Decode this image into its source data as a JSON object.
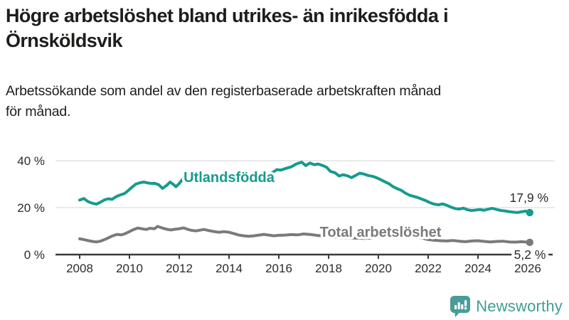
{
  "header": {
    "title_lines": [
      "Högre arbetslöshet bland utrikes- än inrikesfödda i",
      "Örnsköldsvik"
    ],
    "subtitle_lines": [
      "Arbetssökande som andel av den registerbaserade arbetskraften månad",
      "för månad."
    ]
  },
  "chart_data": {
    "type": "line",
    "title": "Högre arbetslöshet bland utrikes- än inrikesfödda i Örnsköldsvik",
    "subtitle": "Arbetssökande som andel av den registerbaserade arbetskraften månad för månad.",
    "grid": "horizontal",
    "legend_position": "inline-labels",
    "xlim": [
      2007.8,
      2026.6
    ],
    "ylim": [
      0,
      42
    ],
    "x_tick_years": [
      2008,
      2010,
      2012,
      2014,
      2016,
      2018,
      2020,
      2022,
      2024,
      2026
    ],
    "y_ticks": [
      {
        "value": 0,
        "label": "0 %"
      },
      {
        "value": 20,
        "label": "20 %"
      },
      {
        "value": 40,
        "label": "40 %"
      }
    ],
    "series": [
      {
        "name": "Utlandsfödda",
        "color": "#169b8d",
        "end_label": "17,9 %",
        "end_value": 17.9,
        "points": [
          [
            2008.0,
            23.2
          ],
          [
            2008.17,
            23.9
          ],
          [
            2008.33,
            22.6
          ],
          [
            2008.5,
            21.9
          ],
          [
            2008.67,
            21.5
          ],
          [
            2008.83,
            22.3
          ],
          [
            2009.0,
            23.3
          ],
          [
            2009.15,
            23.8
          ],
          [
            2009.3,
            23.5
          ],
          [
            2009.45,
            24.6
          ],
          [
            2009.6,
            25.3
          ],
          [
            2009.8,
            26.0
          ],
          [
            2009.92,
            27.0
          ],
          [
            2010.08,
            28.5
          ],
          [
            2010.25,
            30.0
          ],
          [
            2010.42,
            30.6
          ],
          [
            2010.58,
            30.9
          ],
          [
            2010.75,
            30.5
          ],
          [
            2010.92,
            30.3
          ],
          [
            2011.0,
            30.4
          ],
          [
            2011.17,
            29.8
          ],
          [
            2011.33,
            28.2
          ],
          [
            2011.5,
            29.5
          ],
          [
            2011.63,
            30.9
          ],
          [
            2011.75,
            30.0
          ],
          [
            2011.87,
            28.9
          ],
          [
            2012.0,
            30.3
          ],
          [
            2012.17,
            32.6
          ],
          [
            2012.33,
            33.0
          ],
          [
            2012.5,
            32.0
          ],
          [
            2012.75,
            31.4
          ],
          [
            2013.0,
            32.2
          ],
          [
            2013.25,
            31.4
          ],
          [
            2013.5,
            30.8
          ],
          [
            2013.75,
            31.6
          ],
          [
            2014.0,
            31.2
          ],
          [
            2014.25,
            30.7
          ],
          [
            2014.5,
            31.4
          ],
          [
            2014.75,
            31.9
          ],
          [
            2015.0,
            32.4
          ],
          [
            2015.25,
            33.0
          ],
          [
            2015.5,
            33.8
          ],
          [
            2015.75,
            35.0
          ],
          [
            2015.92,
            36.2
          ],
          [
            2016.08,
            36.0
          ],
          [
            2016.25,
            36.6
          ],
          [
            2016.5,
            37.4
          ],
          [
            2016.7,
            38.6
          ],
          [
            2016.92,
            39.4
          ],
          [
            2017.08,
            37.9
          ],
          [
            2017.25,
            39.0
          ],
          [
            2017.42,
            38.3
          ],
          [
            2017.58,
            38.6
          ],
          [
            2017.75,
            38.0
          ],
          [
            2017.92,
            37.2
          ],
          [
            2018.08,
            35.4
          ],
          [
            2018.25,
            34.9
          ],
          [
            2018.42,
            33.5
          ],
          [
            2018.58,
            34.0
          ],
          [
            2018.75,
            33.6
          ],
          [
            2018.92,
            32.8
          ],
          [
            2019.08,
            33.7
          ],
          [
            2019.25,
            34.7
          ],
          [
            2019.42,
            34.3
          ],
          [
            2019.58,
            33.7
          ],
          [
            2019.75,
            33.4
          ],
          [
            2019.92,
            32.8
          ],
          [
            2020.08,
            32.0
          ],
          [
            2020.25,
            31.1
          ],
          [
            2020.42,
            30.2
          ],
          [
            2020.58,
            29.0
          ],
          [
            2020.75,
            28.1
          ],
          [
            2020.92,
            27.4
          ],
          [
            2021.08,
            26.2
          ],
          [
            2021.25,
            25.3
          ],
          [
            2021.42,
            24.8
          ],
          [
            2021.58,
            24.3
          ],
          [
            2021.75,
            23.6
          ],
          [
            2021.92,
            22.9
          ],
          [
            2022.08,
            22.1
          ],
          [
            2022.25,
            21.5
          ],
          [
            2022.42,
            21.2
          ],
          [
            2022.58,
            21.6
          ],
          [
            2022.75,
            21.0
          ],
          [
            2022.92,
            20.2
          ],
          [
            2023.08,
            19.6
          ],
          [
            2023.25,
            19.4
          ],
          [
            2023.42,
            19.8
          ],
          [
            2023.58,
            19.1
          ],
          [
            2023.75,
            18.8
          ],
          [
            2023.92,
            19.0
          ],
          [
            2024.08,
            19.2
          ],
          [
            2024.25,
            18.9
          ],
          [
            2024.42,
            19.4
          ],
          [
            2024.58,
            19.7
          ],
          [
            2024.75,
            19.2
          ],
          [
            2024.92,
            18.8
          ],
          [
            2025.08,
            18.6
          ],
          [
            2025.25,
            18.3
          ],
          [
            2025.42,
            18.1
          ],
          [
            2025.58,
            17.9
          ],
          [
            2025.75,
            18.2
          ],
          [
            2025.92,
            18.5
          ],
          [
            2026.08,
            17.9
          ]
        ]
      },
      {
        "name": "Total arbetslöshet",
        "color": "#7a7a7a",
        "end_label": "5,2 %",
        "end_value": 5.2,
        "points": [
          [
            2008.0,
            6.7
          ],
          [
            2008.17,
            6.4
          ],
          [
            2008.33,
            6.0
          ],
          [
            2008.5,
            5.6
          ],
          [
            2008.67,
            5.4
          ],
          [
            2008.83,
            5.7
          ],
          [
            2009.0,
            6.4
          ],
          [
            2009.17,
            7.2
          ],
          [
            2009.33,
            8.0
          ],
          [
            2009.5,
            8.6
          ],
          [
            2009.67,
            8.4
          ],
          [
            2009.83,
            8.9
          ],
          [
            2010.0,
            9.8
          ],
          [
            2010.17,
            10.7
          ],
          [
            2010.33,
            11.3
          ],
          [
            2010.5,
            11.0
          ],
          [
            2010.67,
            10.7
          ],
          [
            2010.83,
            11.2
          ],
          [
            2011.0,
            11.0
          ],
          [
            2011.13,
            12.0
          ],
          [
            2011.3,
            11.4
          ],
          [
            2011.5,
            10.8
          ],
          [
            2011.67,
            10.5
          ],
          [
            2011.83,
            10.8
          ],
          [
            2012.0,
            11.0
          ],
          [
            2012.17,
            11.4
          ],
          [
            2012.33,
            10.8
          ],
          [
            2012.5,
            10.3
          ],
          [
            2012.67,
            10.1
          ],
          [
            2012.83,
            10.4
          ],
          [
            2013.0,
            10.7
          ],
          [
            2013.2,
            10.2
          ],
          [
            2013.4,
            9.8
          ],
          [
            2013.6,
            9.5
          ],
          [
            2013.8,
            9.8
          ],
          [
            2014.0,
            9.5
          ],
          [
            2014.2,
            8.9
          ],
          [
            2014.4,
            8.3
          ],
          [
            2014.6,
            8.0
          ],
          [
            2014.8,
            7.8
          ],
          [
            2015.0,
            8.0
          ],
          [
            2015.2,
            8.3
          ],
          [
            2015.4,
            8.6
          ],
          [
            2015.6,
            8.3
          ],
          [
            2015.8,
            8.0
          ],
          [
            2016.0,
            8.2
          ],
          [
            2016.25,
            8.3
          ],
          [
            2016.5,
            8.5
          ],
          [
            2016.75,
            8.4
          ],
          [
            2017.0,
            8.8
          ],
          [
            2017.3,
            8.5
          ],
          [
            2017.6,
            8.1
          ],
          [
            2017.9,
            7.8
          ],
          [
            2018.2,
            7.5
          ],
          [
            2018.5,
            7.2
          ],
          [
            2018.8,
            7.1
          ],
          [
            2019.1,
            7.0
          ],
          [
            2019.4,
            6.9
          ],
          [
            2019.7,
            7.0
          ],
          [
            2020.0,
            7.5
          ],
          [
            2020.3,
            8.6
          ],
          [
            2020.6,
            8.8
          ],
          [
            2020.9,
            8.5
          ],
          [
            2021.2,
            8.0
          ],
          [
            2021.5,
            7.5
          ],
          [
            2021.8,
            6.9
          ],
          [
            2022.0,
            6.4
          ],
          [
            2022.25,
            6.1
          ],
          [
            2022.5,
            5.9
          ],
          [
            2022.75,
            5.8
          ],
          [
            2023.0,
            6.0
          ],
          [
            2023.25,
            5.7
          ],
          [
            2023.5,
            5.5
          ],
          [
            2023.75,
            5.8
          ],
          [
            2024.0,
            5.9
          ],
          [
            2024.25,
            5.6
          ],
          [
            2024.5,
            5.4
          ],
          [
            2024.75,
            5.6
          ],
          [
            2025.0,
            5.7
          ],
          [
            2025.25,
            5.4
          ],
          [
            2025.5,
            5.3
          ],
          [
            2025.75,
            5.5
          ],
          [
            2026.08,
            5.2
          ]
        ]
      }
    ]
  },
  "branding": {
    "name": "Newsworthy",
    "color": "#3f9d99",
    "icon": "newsworthy-speech-bubble-barchart-icon"
  }
}
